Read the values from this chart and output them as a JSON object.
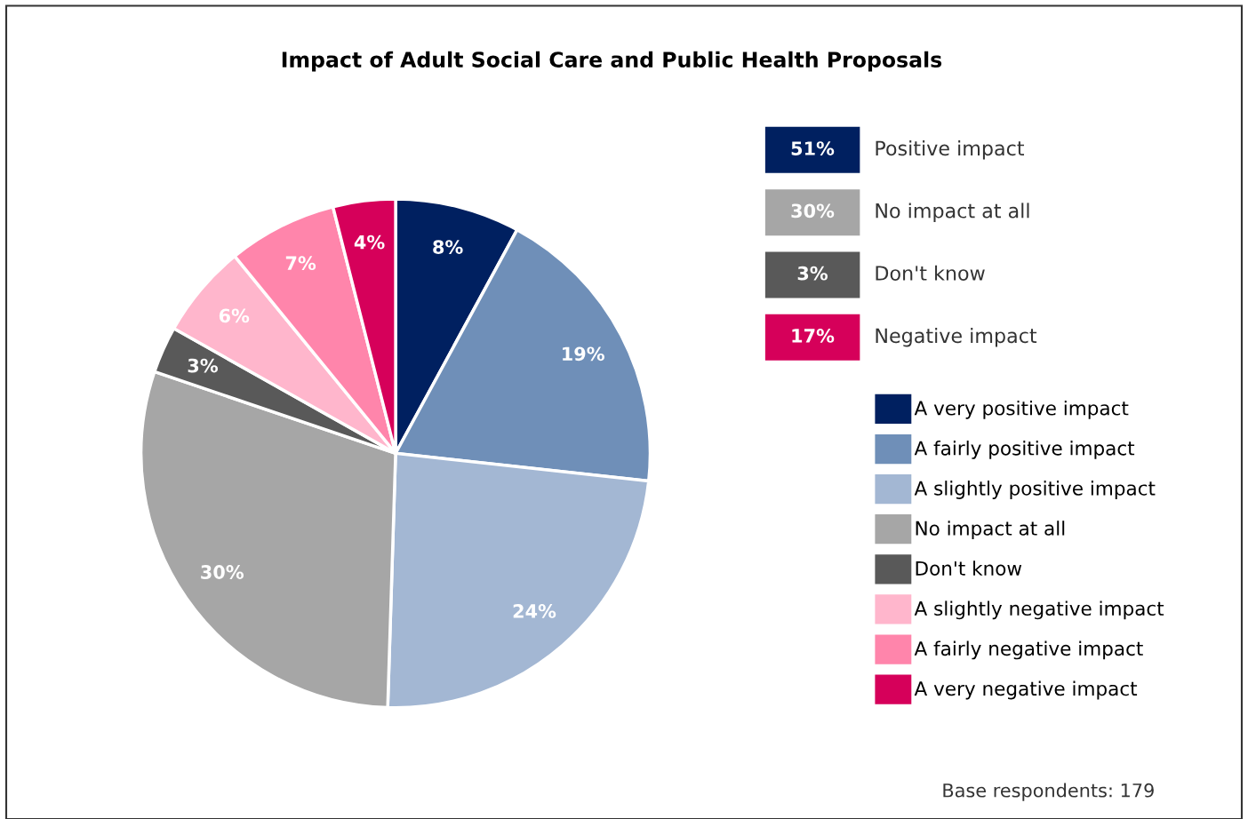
{
  "chart_data": [
    {
      "type": "pie",
      "title": "Impact of Adult Social Care and Public Health Proposals",
      "categories": [
        "A very positive impact",
        "A fairly positive impact",
        "A slightly positive impact",
        "No impact at all",
        "Don't know",
        "A slightly negative impact",
        "A fairly negative impact",
        "A very negative impact"
      ],
      "values": [
        8,
        19,
        24,
        30,
        3,
        6,
        7,
        4
      ],
      "value_labels": [
        "8%",
        "19%",
        "24%",
        "30%",
        "3%",
        "6%",
        "7%",
        "4%"
      ],
      "colors": [
        "#002060",
        "#6f8fb8",
        "#a3b7d3",
        "#a6a6a6",
        "#595959",
        "#ffb6cc",
        "#ff85ab",
        "#d6005a"
      ],
      "legend": "right",
      "annotations": [
        "Base respondents: 179"
      ]
    },
    {
      "type": "other",
      "categories": [
        "Positive impact",
        "No impact at all",
        "Don't know",
        "Negative impact"
      ],
      "value_labels": [
        "51%",
        "30%",
        "3%",
        "17%"
      ],
      "colors": [
        "#002060",
        "#a6a6a6",
        "#595959",
        "#d6005a"
      ]
    }
  ]
}
